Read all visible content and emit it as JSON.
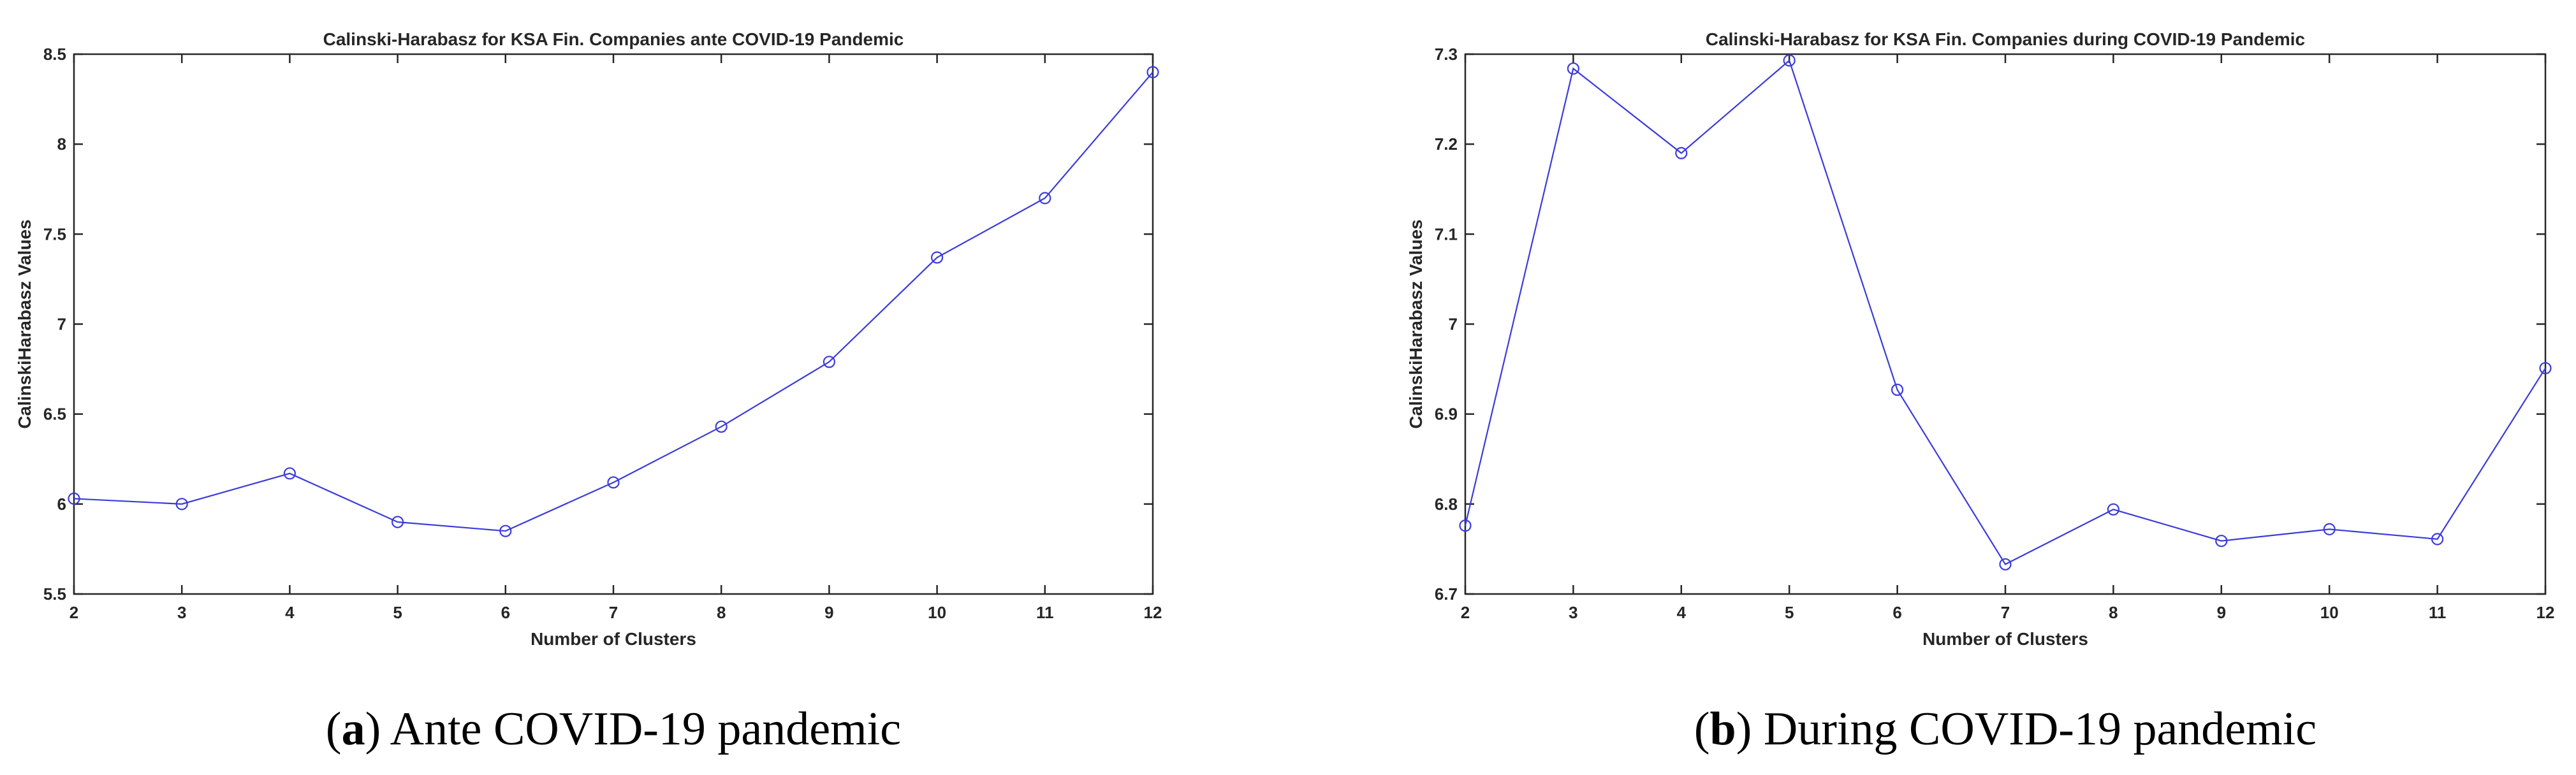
{
  "chart_data": [
    {
      "type": "line",
      "title": "Calinski-Harabasz for KSA Fin. Companies ante COVID-19 Pandemic",
      "xlabel": "Number of Clusters",
      "ylabel": "CalinskiHarabasz Values",
      "x": [
        2,
        3,
        4,
        5,
        6,
        7,
        8,
        9,
        10,
        11,
        12
      ],
      "series": [
        {
          "values": [
            6.03,
            6.0,
            6.17,
            5.9,
            5.85,
            6.12,
            6.43,
            6.79,
            7.37,
            7.7,
            8.4
          ],
          "color": "#3b3bdc",
          "marker": "circle"
        }
      ],
      "xlim": [
        2,
        12
      ],
      "ylim": [
        5.5,
        8.5
      ],
      "xticks": [
        "2",
        "3",
        "4",
        "5",
        "6",
        "7",
        "8",
        "9",
        "10",
        "11",
        "12"
      ],
      "yticks": [
        "5.5",
        "6",
        "6.5",
        "7",
        "7.5",
        "8",
        "8.5"
      ],
      "grid": false,
      "caption": {
        "letter": "a",
        "text": "Ante COVID-19 pandemic"
      }
    },
    {
      "type": "line",
      "title": "Calinski-Harabasz for KSA Fin. Companies during COVID-19 Pandemic",
      "xlabel": "Number of Clusters",
      "ylabel": "CalinskiHarabasz Values",
      "x": [
        2,
        3,
        4,
        5,
        6,
        7,
        8,
        9,
        10,
        11,
        12
      ],
      "series": [
        {
          "values": [
            6.776,
            7.284,
            7.19,
            7.293,
            6.927,
            6.733,
            6.794,
            6.759,
            6.772,
            6.761,
            6.951
          ],
          "color": "#3b3bdc",
          "marker": "circle"
        }
      ],
      "xlim": [
        2,
        12
      ],
      "ylim": [
        6.7,
        7.3
      ],
      "xticks": [
        "2",
        "3",
        "4",
        "5",
        "6",
        "7",
        "8",
        "9",
        "10",
        "11",
        "12"
      ],
      "yticks": [
        "6.7",
        "6.8",
        "6.9",
        "7",
        "7.1",
        "7.2",
        "7.3"
      ],
      "grid": false,
      "caption": {
        "letter": "b",
        "text": "During COVID-19 pandemic"
      }
    }
  ]
}
